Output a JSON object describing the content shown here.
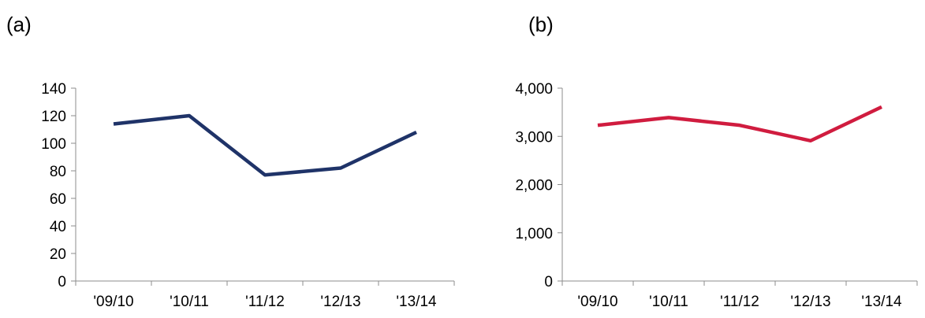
{
  "panels": {
    "a_label": "(a)",
    "b_label": "(b)"
  },
  "chart_data": [
    {
      "type": "line",
      "panel": "(a)",
      "categories": [
        "'09/10",
        "'10/11",
        "'11/12",
        "'12/13",
        "'13/14"
      ],
      "series": [
        {
          "values": [
            114,
            120,
            77,
            82,
            108
          ],
          "color": "#1f3368"
        }
      ],
      "ylim": [
        0,
        140
      ],
      "yticks": [
        0,
        20,
        40,
        60,
        80,
        100,
        120,
        140
      ],
      "ytick_labels": [
        "0",
        "20",
        "40",
        "60",
        "80",
        "100",
        "120",
        "140"
      ],
      "grid": false,
      "title": "",
      "xlabel": "",
      "ylabel": ""
    },
    {
      "type": "line",
      "panel": "(b)",
      "categories": [
        "'09/10",
        "'10/11",
        "'11/12",
        "'12/13",
        "'13/14"
      ],
      "series": [
        {
          "values": [
            3230,
            3390,
            3230,
            2910,
            3610
          ],
          "color": "#d01c3f"
        }
      ],
      "ylim": [
        0,
        4000
      ],
      "yticks": [
        0,
        1000,
        2000,
        3000,
        4000
      ],
      "ytick_labels": [
        "0",
        "1,000",
        "2,000",
        "3,000",
        "4,000"
      ],
      "grid": false,
      "title": "",
      "xlabel": "",
      "ylabel": ""
    }
  ]
}
